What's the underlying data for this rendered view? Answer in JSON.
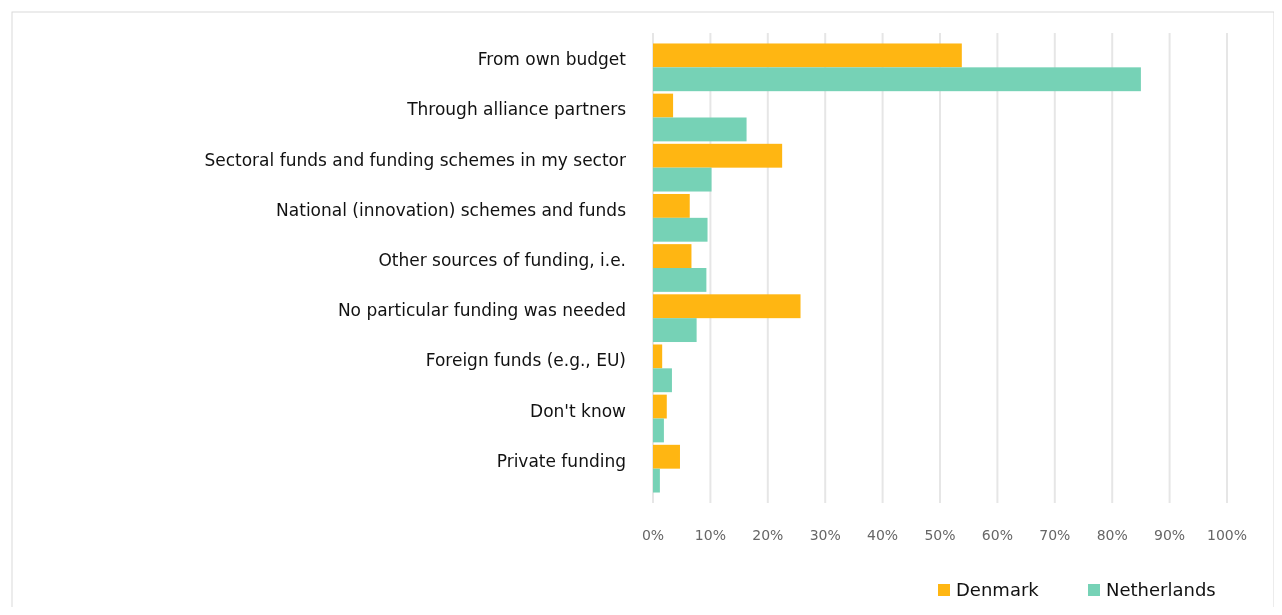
{
  "chart_data": {
    "type": "bar",
    "orientation": "horizontal",
    "categories": [
      "From own budget",
      "Through alliance partners",
      "Sectoral funds and funding schemes in my sector",
      "National (innovation) schemes and funds",
      "Other sources of funding, i.e.",
      "No particular funding was needed",
      "Foreign funds (e.g., EU)",
      "Don't know",
      "Private funding"
    ],
    "series": [
      {
        "name": "Denmark",
        "color": "#ffb612",
        "values": [
          53.8,
          3.5,
          22.5,
          6.4,
          6.7,
          25.7,
          1.6,
          2.4,
          4.7
        ]
      },
      {
        "name": "Netherlands",
        "color": "#76d2b6",
        "values": [
          85.0,
          16.3,
          10.2,
          9.5,
          9.3,
          7.6,
          3.3,
          1.9,
          1.2
        ]
      }
    ],
    "xlim": [
      0,
      100
    ],
    "xticks": [
      {
        "value": 0,
        "label": "0%"
      },
      {
        "value": 10,
        "label": "10%"
      },
      {
        "value": 20,
        "label": "20%"
      },
      {
        "value": 30,
        "label": "30%"
      },
      {
        "value": 40,
        "label": "40%"
      },
      {
        "value": 50,
        "label": "50%"
      },
      {
        "value": 60,
        "label": "60%"
      },
      {
        "value": 70,
        "label": "70%"
      },
      {
        "value": 80,
        "label": "80%"
      },
      {
        "value": 90,
        "label": "90%"
      },
      {
        "value": 100,
        "label": "100%"
      }
    ],
    "grid": "x",
    "legend": "bottom right"
  }
}
